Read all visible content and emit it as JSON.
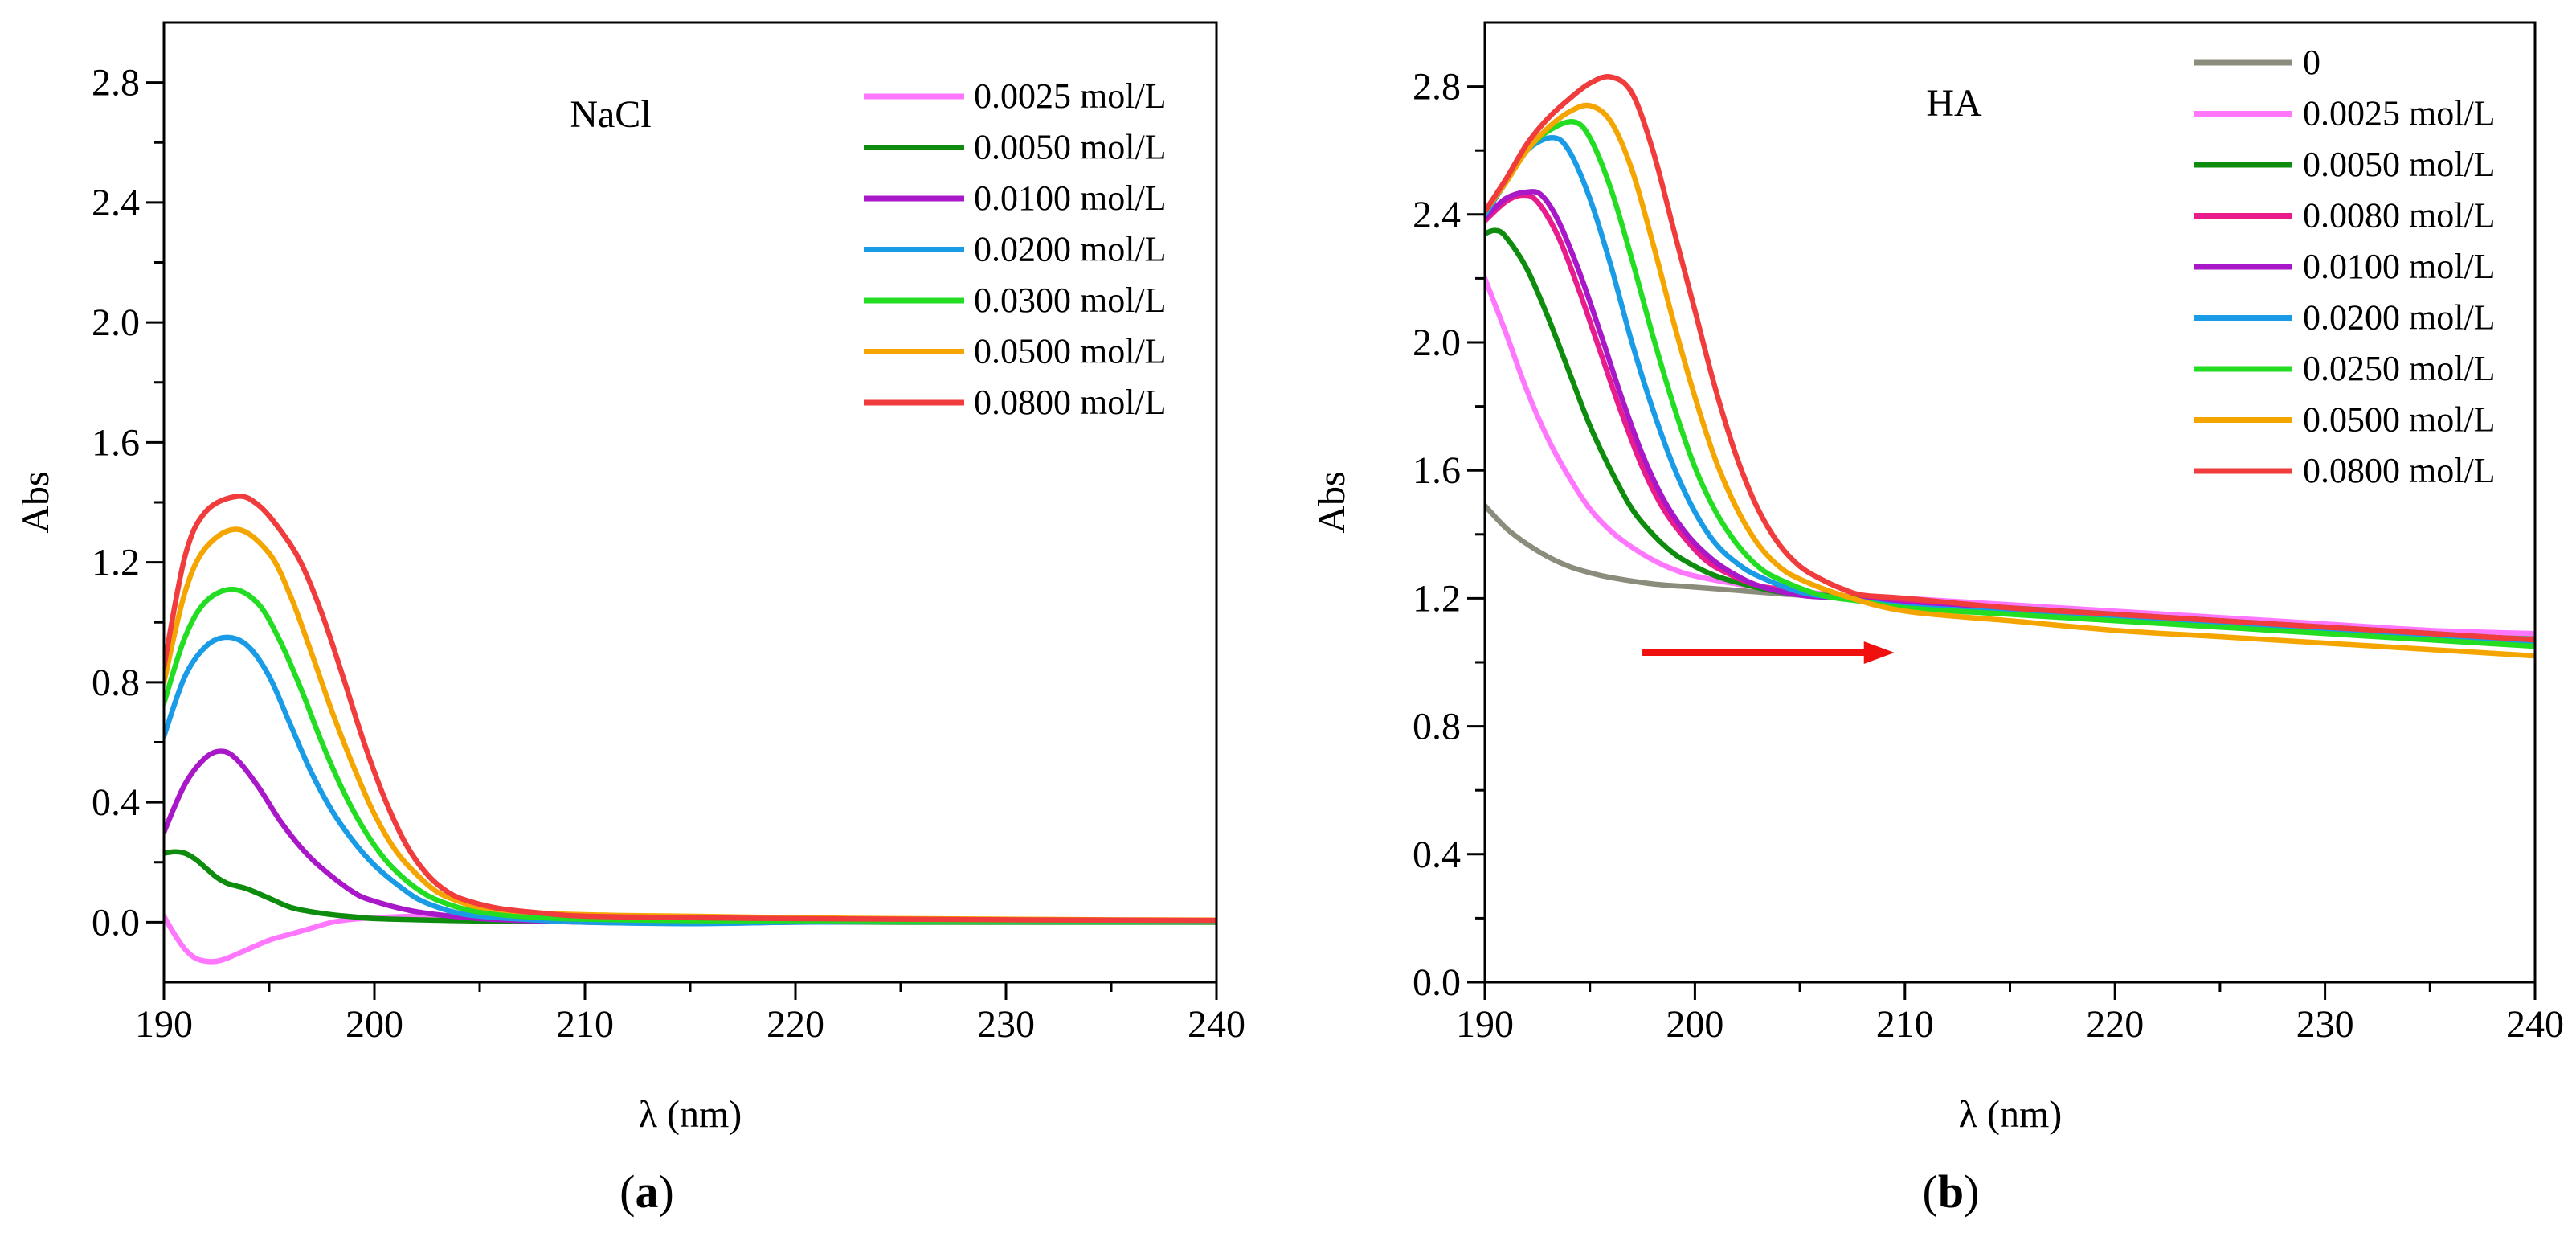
{
  "chart_data": [
    {
      "type": "line",
      "panel_label": "a",
      "inner_label": "NaCl",
      "xlabel": "λ (nm)",
      "ylabel": "Abs",
      "xlim": [
        190,
        240
      ],
      "ylim": [
        -0.2,
        3.0
      ],
      "x_ticks": [
        190,
        200,
        210,
        220,
        230,
        240
      ],
      "x_tick_labels": [
        "190",
        "200",
        "210",
        "220",
        "230",
        "240"
      ],
      "y_ticks": [
        0.0,
        0.4,
        0.8,
        1.2,
        1.6,
        2.0,
        2.4,
        2.8
      ],
      "y_tick_labels": [
        "0.0",
        "0.4",
        "0.8",
        "1.2",
        "1.6",
        "2.0",
        "2.4",
        "2.8"
      ],
      "grid": false,
      "legend_position": "top-right",
      "series": [
        {
          "name": "0.0025 mol/L",
          "color": "#ff77ff",
          "x": [
            190,
            190.5,
            191,
            191.5,
            192,
            192.5,
            193,
            194,
            195,
            196,
            197,
            198,
            199,
            200,
            202,
            205,
            210,
            215,
            220,
            225,
            230,
            235,
            240
          ],
          "y": [
            0.02,
            -0.04,
            -0.09,
            -0.12,
            -0.13,
            -0.13,
            -0.12,
            -0.09,
            -0.06,
            -0.04,
            -0.02,
            0.0,
            0.01,
            0.015,
            0.02,
            0.02,
            0.015,
            0.012,
            0.01,
            0.008,
            0.006,
            0.004,
            0.003
          ]
        },
        {
          "name": "0.0050 mol/L",
          "color": "#0e8c0e",
          "x": [
            190,
            190.5,
            191,
            191.5,
            192,
            192.5,
            193,
            193.5,
            194,
            195,
            196,
            197,
            198,
            199,
            200,
            202,
            205,
            210,
            215,
            220,
            225,
            230,
            235,
            240
          ],
          "y": [
            0.23,
            0.235,
            0.23,
            0.21,
            0.18,
            0.15,
            0.13,
            0.12,
            0.11,
            0.08,
            0.05,
            0.035,
            0.025,
            0.018,
            0.012,
            0.008,
            0.004,
            0.002,
            0.001,
            0.001,
            0.0,
            0.0,
            0.0,
            0.0
          ]
        },
        {
          "name": "0.0100 mol/L",
          "color": "#a818c8",
          "x": [
            190,
            191,
            192,
            192.8,
            193.5,
            194.5,
            195.5,
            196.5,
            197.5,
            199,
            200,
            202,
            205,
            208,
            210,
            215,
            220,
            225,
            230,
            235,
            240
          ],
          "y": [
            0.3,
            0.46,
            0.55,
            0.57,
            0.54,
            0.45,
            0.34,
            0.25,
            0.18,
            0.1,
            0.07,
            0.035,
            0.012,
            0.004,
            0.0,
            -0.004,
            0.0,
            0.002,
            0.002,
            0.002,
            0.002
          ]
        },
        {
          "name": "0.0200 mol/L",
          "color": "#1a9be6",
          "x": [
            190,
            191,
            192,
            193,
            194,
            195,
            196,
            197,
            198,
            199,
            200,
            201,
            202,
            203,
            204,
            205,
            207,
            210,
            215,
            220,
            225,
            230,
            235,
            240
          ],
          "y": [
            0.62,
            0.82,
            0.92,
            0.95,
            0.92,
            0.82,
            0.66,
            0.5,
            0.37,
            0.27,
            0.19,
            0.13,
            0.08,
            0.05,
            0.03,
            0.02,
            0.01,
            0.0,
            -0.005,
            0.0,
            0.002,
            0.002,
            0.002,
            0.002
          ]
        },
        {
          "name": "0.0300 mol/L",
          "color": "#22dd22",
          "x": [
            190,
            191,
            192,
            193.3,
            194.5,
            195.5,
            196.5,
            197.5,
            198.5,
            199.5,
            200.5,
            201.5,
            202.5,
            203.5,
            204.5,
            206,
            208,
            210,
            215,
            220,
            225,
            230,
            235,
            240
          ],
          "y": [
            0.73,
            0.95,
            1.07,
            1.11,
            1.06,
            0.94,
            0.78,
            0.6,
            0.44,
            0.31,
            0.21,
            0.14,
            0.09,
            0.06,
            0.04,
            0.025,
            0.015,
            0.01,
            0.005,
            0.005,
            0.005,
            0.005,
            0.005,
            0.005
          ]
        },
        {
          "name": "0.0500 mol/L",
          "color": "#f5a500",
          "x": [
            190,
            191,
            192,
            193.5,
            195,
            196,
            197,
            198,
            199,
            200,
            201,
            202,
            203,
            204,
            205,
            207,
            210,
            215,
            220,
            225,
            230,
            235,
            240
          ],
          "y": [
            0.8,
            1.1,
            1.25,
            1.31,
            1.23,
            1.09,
            0.9,
            0.7,
            0.52,
            0.36,
            0.24,
            0.16,
            0.1,
            0.07,
            0.05,
            0.035,
            0.025,
            0.02,
            0.015,
            0.012,
            0.01,
            0.008,
            0.007
          ]
        },
        {
          "name": "0.0800 mol/L",
          "color": "#f03c3c",
          "x": [
            190,
            191,
            192,
            193.5,
            194.5,
            195.5,
            196.5,
            197.5,
            198.5,
            199.5,
            200.5,
            201.5,
            202.5,
            203.5,
            204.5,
            206,
            208,
            210,
            215,
            220,
            225,
            230,
            235,
            240
          ],
          "y": [
            0.85,
            1.22,
            1.37,
            1.42,
            1.39,
            1.31,
            1.2,
            1.03,
            0.82,
            0.6,
            0.41,
            0.26,
            0.16,
            0.1,
            0.07,
            0.045,
            0.03,
            0.02,
            0.015,
            0.012,
            0.01,
            0.008,
            0.007,
            0.006
          ]
        }
      ]
    },
    {
      "type": "line",
      "panel_label": "b",
      "inner_label": "HA",
      "xlabel": "λ (nm)",
      "ylabel": "Abs",
      "xlim": [
        190,
        240
      ],
      "ylim": [
        0.0,
        3.0
      ],
      "x_ticks": [
        190,
        200,
        210,
        220,
        230,
        240
      ],
      "x_tick_labels": [
        "190",
        "200",
        "210",
        "220",
        "230",
        "240"
      ],
      "y_ticks": [
        0.0,
        0.4,
        0.8,
        1.2,
        1.6,
        2.0,
        2.4,
        2.8
      ],
      "y_tick_labels": [
        "0.0",
        "0.4",
        "0.8",
        "1.2",
        "1.6",
        "2.0",
        "2.4",
        "2.8"
      ],
      "grid": false,
      "legend_position": "top-right",
      "annotation": {
        "type": "arrow",
        "color": "#f01010",
        "x_from": 197.5,
        "x_to": 209.5,
        "y": 1.03
      },
      "series": [
        {
          "name": "0",
          "color": "#8c8c7c",
          "x": [
            190,
            191,
            192,
            193,
            194,
            195,
            196,
            198,
            200,
            202,
            205,
            208,
            210,
            215,
            220,
            225,
            230,
            235,
            240
          ],
          "y": [
            1.49,
            1.42,
            1.37,
            1.33,
            1.3,
            1.28,
            1.265,
            1.245,
            1.235,
            1.225,
            1.21,
            1.2,
            1.19,
            1.17,
            1.15,
            1.13,
            1.11,
            1.09,
            1.08
          ]
        },
        {
          "name": "0.0025 mol/L",
          "color": "#ff77ff",
          "x": [
            190,
            191,
            192,
            193,
            194,
            195,
            196,
            197,
            198,
            199,
            200,
            202,
            204,
            206,
            208,
            210,
            215,
            220,
            225,
            230,
            235,
            240
          ],
          "y": [
            2.2,
            2.03,
            1.85,
            1.7,
            1.58,
            1.48,
            1.41,
            1.36,
            1.32,
            1.29,
            1.27,
            1.245,
            1.23,
            1.215,
            1.205,
            1.2,
            1.18,
            1.16,
            1.14,
            1.12,
            1.1,
            1.09
          ]
        },
        {
          "name": "0.0050 mol/L",
          "color": "#0e8c0e",
          "x": [
            190,
            190.5,
            191,
            192,
            193,
            194,
            195,
            196,
            197,
            198,
            199,
            200,
            201,
            202,
            204,
            206,
            208,
            210,
            215,
            220,
            225,
            230,
            235,
            240
          ],
          "y": [
            2.34,
            2.35,
            2.33,
            2.23,
            2.08,
            1.91,
            1.74,
            1.6,
            1.48,
            1.4,
            1.34,
            1.3,
            1.27,
            1.25,
            1.22,
            1.21,
            1.2,
            1.19,
            1.17,
            1.15,
            1.13,
            1.11,
            1.09,
            1.07
          ]
        },
        {
          "name": "0.0080 mol/L",
          "color": "#e81c8c",
          "x": [
            190,
            191,
            191.8,
            192.5,
            193.5,
            194.5,
            195.5,
            196.5,
            197.5,
            198.5,
            199.5,
            200.5,
            201.5,
            203,
            205,
            207,
            210,
            215,
            220,
            225,
            230,
            235,
            240
          ],
          "y": [
            2.38,
            2.44,
            2.46,
            2.44,
            2.33,
            2.16,
            1.97,
            1.78,
            1.61,
            1.48,
            1.39,
            1.32,
            1.28,
            1.24,
            1.22,
            1.2,
            1.185,
            1.165,
            1.145,
            1.125,
            1.105,
            1.085,
            1.07
          ]
        },
        {
          "name": "0.0100 mol/L",
          "color": "#a818c8",
          "x": [
            190,
            191,
            192,
            192.7,
            193.5,
            194.5,
            195.5,
            196.5,
            197.5,
            198.5,
            199.5,
            200.5,
            201.5,
            203,
            205,
            207,
            210,
            215,
            220,
            225,
            230,
            235,
            240
          ],
          "y": [
            2.39,
            2.45,
            2.47,
            2.46,
            2.38,
            2.22,
            2.03,
            1.83,
            1.65,
            1.51,
            1.41,
            1.34,
            1.29,
            1.24,
            1.21,
            1.2,
            1.18,
            1.16,
            1.14,
            1.12,
            1.1,
            1.08,
            1.06
          ]
        },
        {
          "name": "0.0200 mol/L",
          "color": "#1a9be6",
          "x": [
            190,
            191,
            192,
            193.2,
            194,
            195,
            196,
            197,
            198,
            199,
            200,
            201,
            202,
            203,
            205,
            207,
            210,
            215,
            220,
            225,
            230,
            235,
            240
          ],
          "y": [
            2.4,
            2.5,
            2.6,
            2.64,
            2.6,
            2.45,
            2.24,
            2.0,
            1.79,
            1.61,
            1.47,
            1.37,
            1.31,
            1.27,
            1.22,
            1.2,
            1.175,
            1.155,
            1.135,
            1.115,
            1.095,
            1.075,
            1.055
          ]
        },
        {
          "name": "0.0250 mol/L",
          "color": "#22dd22",
          "x": [
            190,
            191,
            192,
            193,
            194.2,
            195,
            196,
            197,
            198,
            199,
            200,
            201,
            202,
            203,
            204,
            206,
            208,
            210,
            215,
            220,
            225,
            230,
            235,
            240
          ],
          "y": [
            2.41,
            2.5,
            2.6,
            2.66,
            2.69,
            2.64,
            2.48,
            2.26,
            2.02,
            1.8,
            1.61,
            1.47,
            1.37,
            1.3,
            1.26,
            1.21,
            1.19,
            1.17,
            1.15,
            1.13,
            1.11,
            1.09,
            1.07,
            1.05
          ]
        },
        {
          "name": "0.0500 mol/L",
          "color": "#f5a500",
          "x": [
            190,
            191,
            192,
            193,
            194,
            195,
            196,
            197,
            198,
            199,
            200,
            201,
            202,
            203,
            204,
            205,
            207,
            210,
            215,
            220,
            225,
            230,
            235,
            240
          ],
          "y": [
            2.41,
            2.5,
            2.6,
            2.67,
            2.72,
            2.74,
            2.69,
            2.54,
            2.31,
            2.06,
            1.83,
            1.63,
            1.48,
            1.37,
            1.3,
            1.26,
            1.21,
            1.16,
            1.13,
            1.1,
            1.08,
            1.06,
            1.04,
            1.02
          ]
        },
        {
          "name": "0.0800 mol/L",
          "color": "#f03c3c",
          "x": [
            190,
            191,
            192,
            193,
            194,
            195,
            196,
            197,
            198,
            199,
            200,
            201,
            202,
            203,
            204,
            205,
            206,
            207,
            208,
            210,
            215,
            220,
            225,
            230,
            235,
            240
          ],
          "y": [
            2.41,
            2.51,
            2.62,
            2.7,
            2.76,
            2.81,
            2.83,
            2.78,
            2.6,
            2.35,
            2.1,
            1.85,
            1.64,
            1.48,
            1.37,
            1.3,
            1.26,
            1.23,
            1.21,
            1.2,
            1.17,
            1.15,
            1.13,
            1.11,
            1.09,
            1.07
          ]
        }
      ]
    }
  ]
}
